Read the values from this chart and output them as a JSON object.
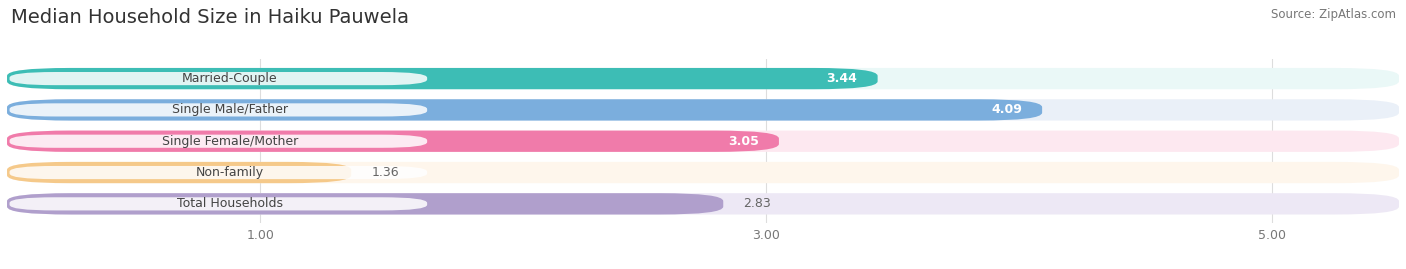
{
  "title": "Median Household Size in Haiku Pauwela",
  "source": "Source: ZipAtlas.com",
  "categories": [
    "Married-Couple",
    "Single Male/Father",
    "Single Female/Mother",
    "Non-family",
    "Total Households"
  ],
  "values": [
    3.44,
    4.09,
    3.05,
    1.36,
    2.83
  ],
  "bar_colors": [
    "#3DBDB5",
    "#7BAEDD",
    "#F07BAA",
    "#F5C98A",
    "#B09FCC"
  ],
  "bar_bg_colors": [
    "#EAF8F7",
    "#EAF0F8",
    "#FDE8F0",
    "#FEF6EC",
    "#EDE8F5"
  ],
  "xmin": 0.0,
  "xmax": 5.5,
  "xticks": [
    1.0,
    3.0,
    5.0
  ],
  "xtick_labels": [
    "1.00",
    "3.00",
    "5.00"
  ],
  "title_fontsize": 14,
  "label_fontsize": 9,
  "value_fontsize": 9,
  "bg_color": "#FFFFFF"
}
